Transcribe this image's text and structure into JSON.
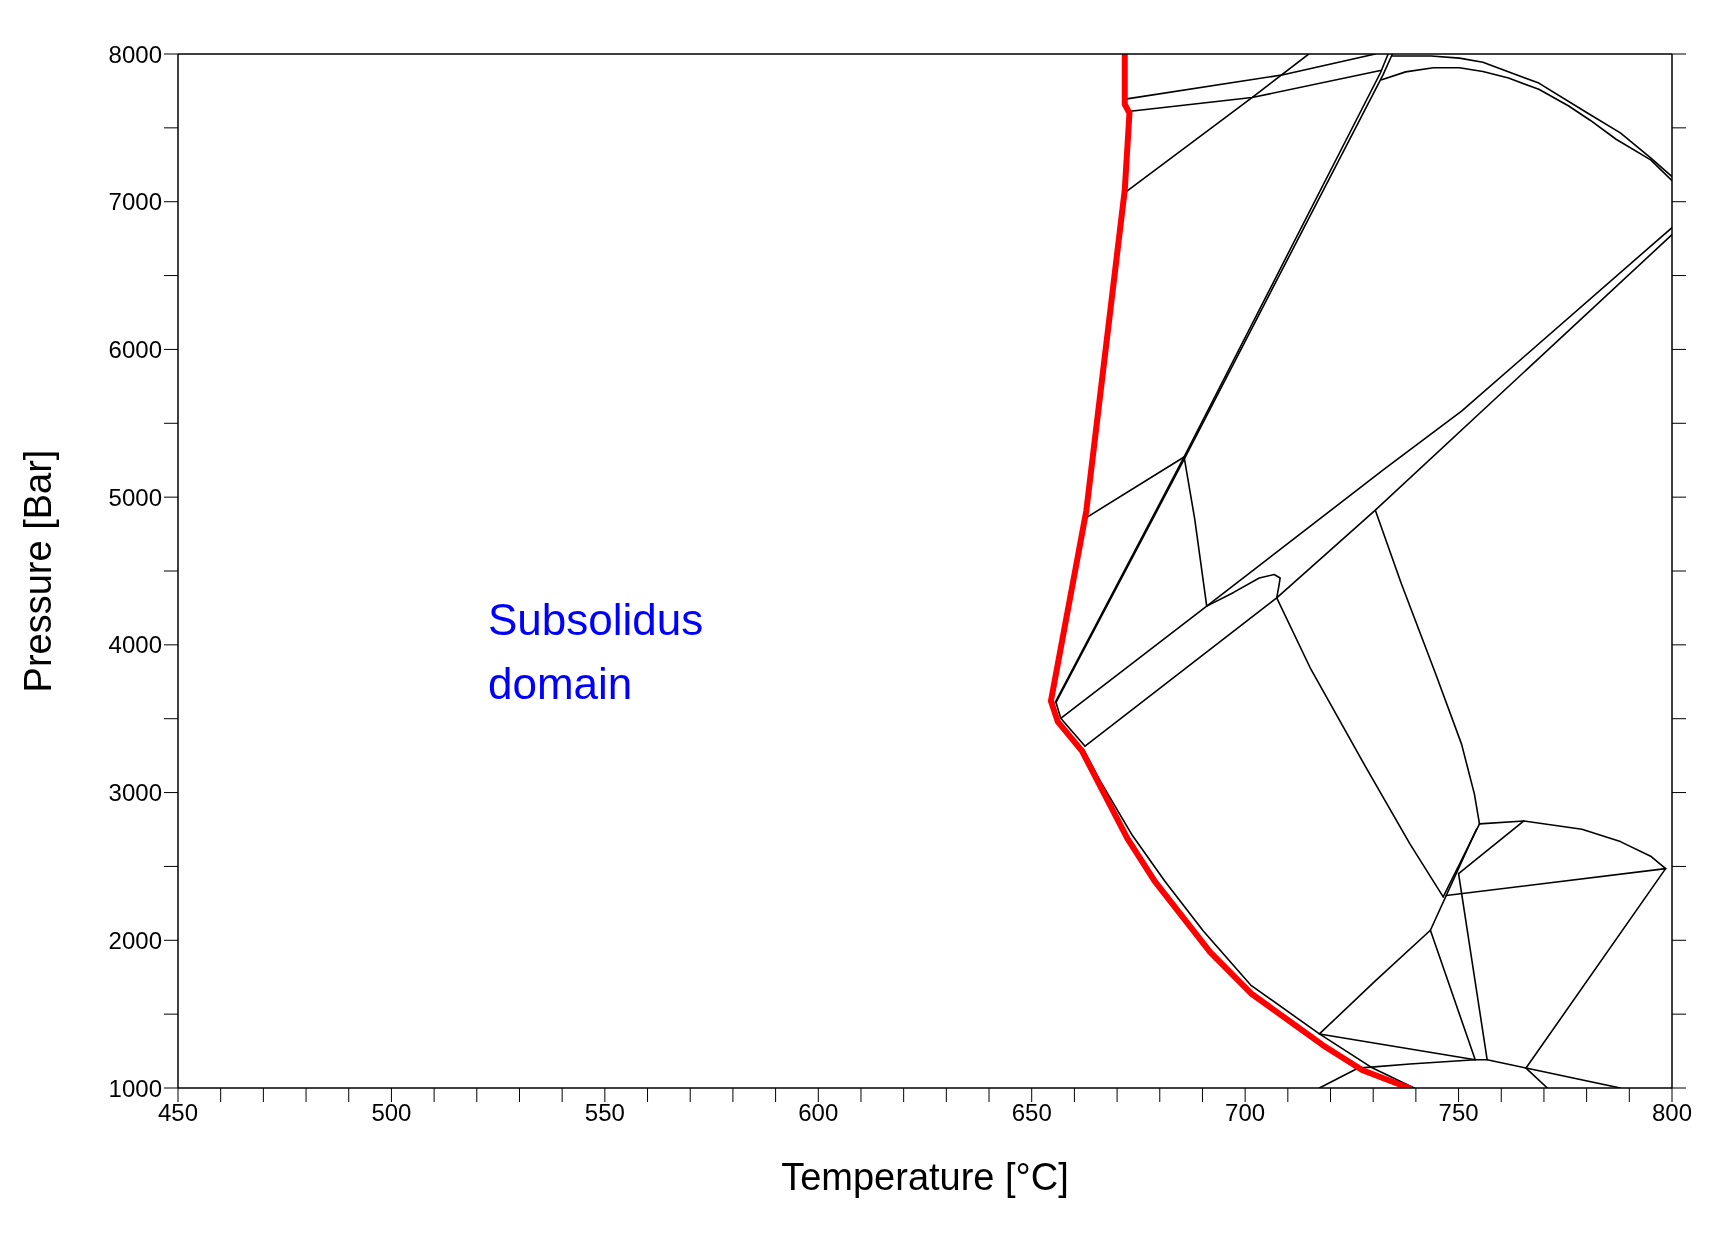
{
  "chart_data": {
    "type": "line",
    "xlabel": "Temperature [°C]",
    "ylabel": "Pressure [Bar]",
    "annotations": [
      "Subsolidus domain"
    ],
    "xlim": [
      450,
      800
    ],
    "ylim": [
      1000,
      8000
    ],
    "xticks": [
      450,
      {
        "value": 460,
        "label": null
      },
      {
        "value": 470,
        "label": null
      },
      {
        "value": 480,
        "label": null
      },
      {
        "value": 490,
        "label": null
      },
      500,
      {
        "value": 510,
        "label": null
      },
      {
        "value": 520,
        "label": null
      },
      {
        "value": 530,
        "label": null
      },
      {
        "value": 540,
        "label": null
      },
      550,
      {
        "value": 560,
        "label": null
      },
      {
        "value": 570,
        "label": null
      },
      {
        "value": 580,
        "label": null
      },
      {
        "value": 590,
        "label": null
      },
      600,
      {
        "value": 610,
        "label": null
      },
      {
        "value": 620,
        "label": null
      },
      {
        "value": 630,
        "label": null
      },
      {
        "value": 640,
        "label": null
      },
      650,
      {
        "value": 660,
        "label": null
      },
      {
        "value": 670,
        "label": null
      },
      {
        "value": 680,
        "label": null
      },
      {
        "value": 690,
        "label": null
      },
      700,
      {
        "value": 710,
        "label": null
      },
      {
        "value": 720,
        "label": null
      },
      {
        "value": 730,
        "label": null
      },
      {
        "value": 740,
        "label": null
      },
      750,
      {
        "value": 760,
        "label": null
      },
      {
        "value": 770,
        "label": null
      },
      {
        "value": 780,
        "label": null
      },
      {
        "value": 790,
        "label": null
      },
      800
    ],
    "yticks": [
      1000,
      {
        "value": 1500,
        "label": null
      },
      2000,
      {
        "value": 2500,
        "label": null
      },
      3000,
      {
        "value": 3500,
        "label": null
      },
      4000,
      {
        "value": 4500,
        "label": null
      },
      5000,
      {
        "value": 5500,
        "label": null
      },
      6000,
      {
        "value": 6500,
        "label": null
      },
      7000,
      {
        "value": 7500,
        "label": null
      },
      8000
    ],
    "grid": false,
    "legend": false,
    "marker": "none",
    "line_style": "solid",
    "series": [
      {
        "color": "#ff0000",
        "x": [
          671.8,
          671.8,
          672.9,
          671.8,
          662.8,
          654.5,
          656.1,
          661.8,
          672.4,
          678.8,
          691.8,
          701.4,
          718.2,
          727.5,
          738.4
        ],
        "values": [
          8000,
          7660,
          7600,
          7080,
          4910,
          3620,
          3480,
          3280,
          2690,
          2400,
          1920,
          1640,
          1290,
          1120,
          1000
        ]
      },
      {
        "color": "#000000",
        "x": [
          672.3,
          708.9,
          730.5
        ],
        "values": [
          7696,
          7859,
          8000
        ]
      },
      {
        "color": "#000000",
        "x": [
          673.1,
          701.6,
          731.7
        ],
        "values": [
          7612,
          7705,
          7888
        ]
      },
      {
        "color": "#000000",
        "x": [
          672.3,
          701.6,
          714.9
        ],
        "values": [
          7072,
          7705,
          8000
        ]
      },
      {
        "color": "#000000",
        "x": [
          655.5,
          685.7,
          731.7,
          733.5
        ],
        "values": [
          3610,
          5272,
          7873,
          8000
        ]
      },
      {
        "color": "#000000",
        "x": [
          655.7,
          686.0,
          732.3,
          734.5
        ],
        "values": [
          3610,
          5272,
          7859,
          8000
        ]
      },
      {
        "color": "#000000",
        "x": [
          734.5,
          743.6,
          750.2,
          755.7,
          768.8,
          779.9,
          787.9,
          795.0,
          800
        ],
        "values": [
          7986,
          7986,
          7972,
          7944,
          7803,
          7606,
          7466,
          7297,
          7170
        ]
      },
      {
        "color": "#000000",
        "x": [
          732.0,
          737.6,
          744.1,
          750.2,
          755.7,
          761.7,
          768.8,
          775.8,
          780.9,
          786.9,
          795.0,
          800
        ],
        "values": [
          7826,
          7879,
          7907,
          7907,
          7882,
          7837,
          7761,
          7648,
          7550,
          7423,
          7283,
          7142
        ]
      },
      {
        "color": "#000000",
        "x": [
          663.0,
          685.7
        ],
        "values": [
          4865,
          5272
        ]
      },
      {
        "color": "#000000",
        "x": [
          685.7,
          688.2,
          691.0
        ],
        "values": [
          5272,
          4850,
          4262
        ]
      },
      {
        "color": "#000000",
        "x": [
          656.8,
          691.0,
          732.5,
          750.7,
          800
        ],
        "values": [
          3503,
          4262,
          5188,
          5582,
          6825
        ]
      },
      {
        "color": "#000000",
        "x": [
          662.5,
          707.4,
          730.5,
          800
        ],
        "values": [
          3314,
          4318,
          4912,
          6777
        ]
      },
      {
        "color": "#000000",
        "x": [
          691.0,
          697.3,
          703.3,
          706.8,
          708.2,
          707.9,
          707.4
        ],
        "values": [
          4262,
          4355,
          4453,
          4476,
          4453,
          4397,
          4318
        ]
      },
      {
        "color": "#000000",
        "x": [
          655.7,
          656.8,
          662.5
        ],
        "values": [
          3610,
          3503,
          3314
        ]
      },
      {
        "color": "#000000",
        "x": [
          730.5,
          736.6,
          744.6,
          750.7,
          753.7,
          754.9
        ],
        "values": [
          4912,
          4414,
          3806,
          3328,
          2991,
          2788
        ]
      },
      {
        "color": "#000000",
        "x": [
          707.4,
          715.4,
          728.5,
          738.6,
          746.4
        ],
        "values": [
          4318,
          3835,
          3160,
          2653,
          2294
        ]
      },
      {
        "color": "#000000",
        "x": [
          754.9,
          765.3,
          778.9,
          787.9,
          795.0,
          798.5
        ],
        "values": [
          2788,
          2808,
          2752,
          2668,
          2569,
          2485
        ]
      },
      {
        "color": "#000000",
        "x": [
          754.9,
          746.4
        ],
        "values": [
          2788,
          2294
        ]
      },
      {
        "color": "#000000",
        "x": [
          754.2,
          743.4,
          730.5,
          717.4,
          753.9,
          756.7,
          765.8,
          787.9
        ],
        "values": [
          2752,
          2068,
          1725,
          1366,
          1191,
          1191,
          1135,
          1000
        ]
      },
      {
        "color": "#000000",
        "x": [
          765.3,
          750.0
        ],
        "values": [
          2808,
          2451
        ]
      },
      {
        "color": "#000000",
        "x": [
          747.1,
          798.5
        ],
        "values": [
          2303,
          2485
        ]
      },
      {
        "color": "#000000",
        "x": [
          750.0,
          756.7
        ],
        "values": [
          2451,
          1191
        ]
      },
      {
        "color": "#000000",
        "x": [
          798.5,
          765.8
        ],
        "values": [
          2485,
          1135
        ]
      },
      {
        "color": "#000000",
        "x": [
          743.4,
          753.9
        ],
        "values": [
          2068,
          1191
        ]
      },
      {
        "color": "#000000",
        "x": [
          765.8,
          770.8
        ],
        "values": [
          1135,
          1000
        ]
      },
      {
        "color": "#000000",
        "x": [
          717.4,
          726.5,
          729.5,
          738.6,
          753.9
        ],
        "values": [
          1000,
          1135,
          1141,
          1163,
          1191
        ]
      },
      {
        "color": "#000000",
        "x": [
          662.0,
          666.1,
          673.6,
          681.2,
          690.2,
          701.3,
          717.4,
          729.5,
          739.6
        ],
        "values": [
          3300,
          3075,
          2709,
          2400,
          2063,
          1697,
          1366,
          1141,
          1000
        ]
      }
    ]
  }
}
